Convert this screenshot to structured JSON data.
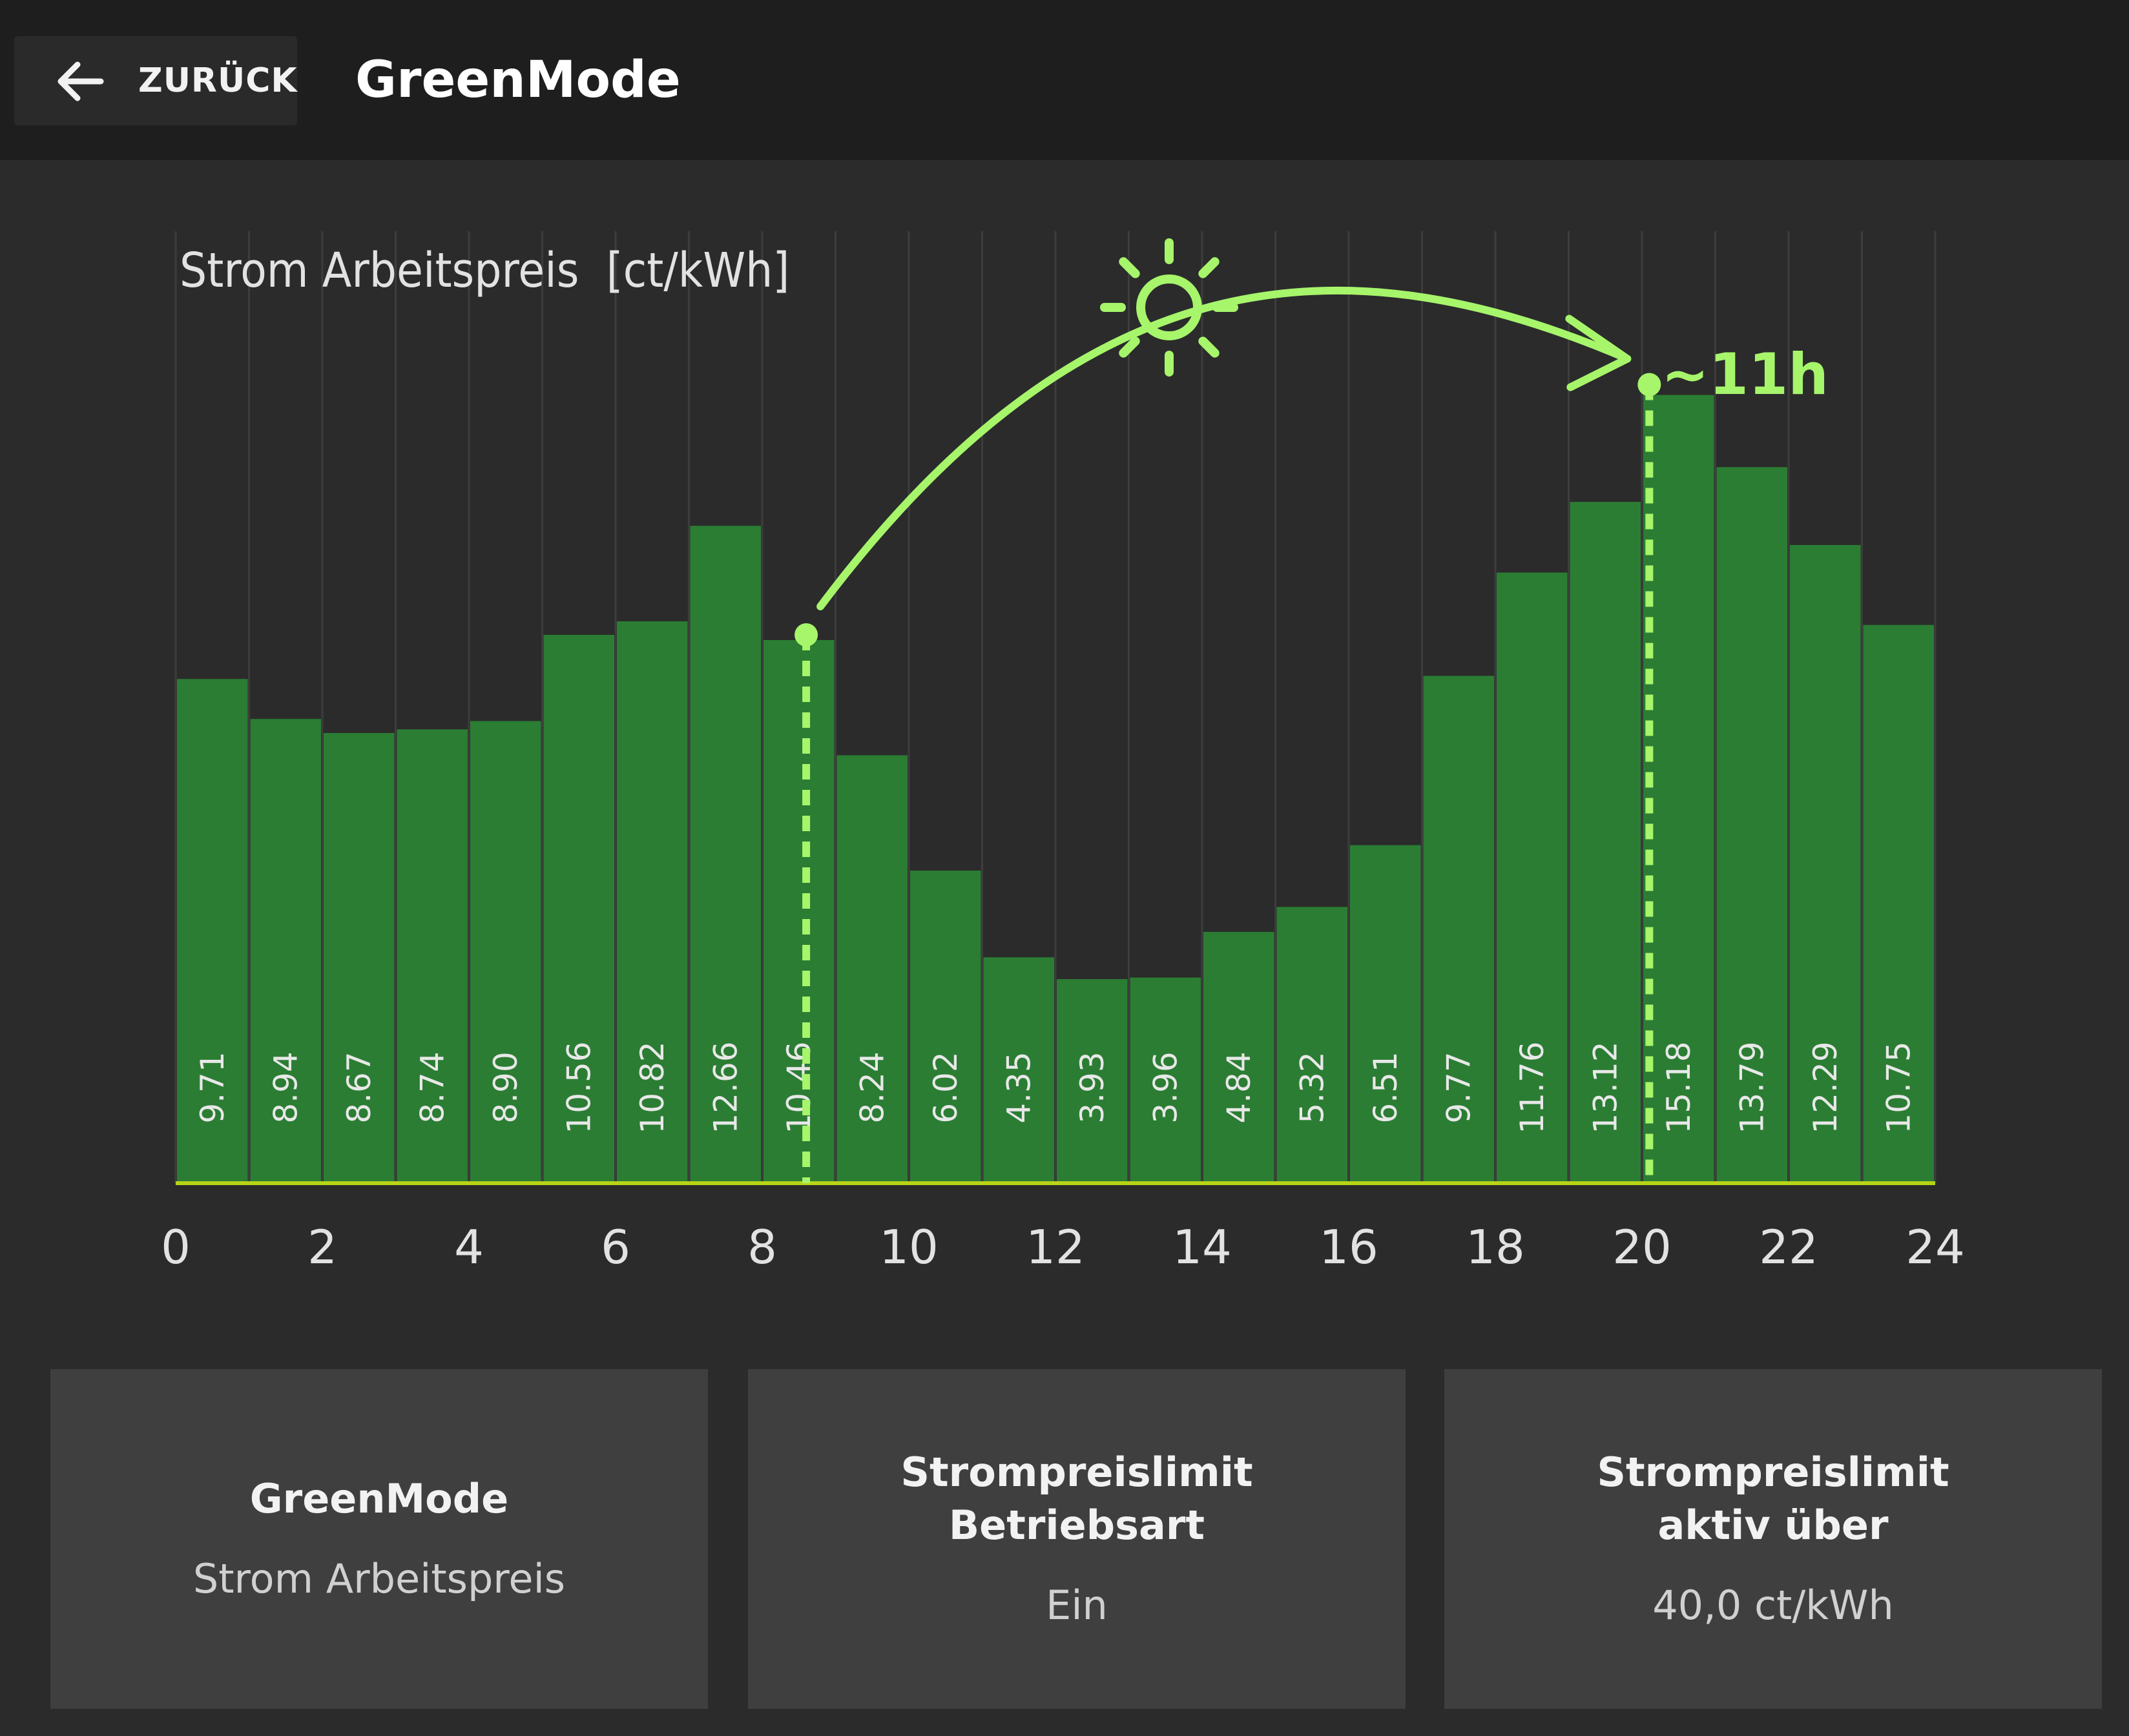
{
  "header": {
    "back_label": "ZURÜCK",
    "title": "GreenMode"
  },
  "chart_data": {
    "type": "bar",
    "title": "Strom Arbeitspreis  [ct/kWh]",
    "xlabel": "",
    "ylabel": "",
    "x_ticks": [
      0,
      2,
      4,
      6,
      8,
      10,
      12,
      14,
      16,
      18,
      20,
      22,
      24
    ],
    "xlim": [
      0,
      24
    ],
    "ylim": [
      0,
      20
    ],
    "grid": true,
    "bar_color": "#2b7d33",
    "baseline_color": "#b7d418",
    "categories": [
      0,
      1,
      2,
      3,
      4,
      5,
      6,
      7,
      8,
      9,
      10,
      11,
      12,
      13,
      14,
      15,
      16,
      17,
      18,
      19,
      20,
      21,
      22,
      23
    ],
    "values": [
      9.71,
      8.94,
      8.67,
      8.74,
      8.9,
      10.56,
      10.82,
      12.66,
      10.46,
      8.24,
      6.02,
      4.35,
      3.93,
      3.96,
      4.84,
      5.32,
      6.51,
      9.77,
      11.76,
      13.12,
      15.18,
      13.79,
      12.29,
      10.75
    ],
    "labels": [
      "9.71",
      "8.94",
      "8.67",
      "8.74",
      "8.90",
      "10.56",
      "10.82",
      "12.66",
      "10.46",
      "8.24",
      "6.02",
      "4.35",
      "3.93",
      "3.96",
      "4.84",
      "5.32",
      "6.51",
      "9.77",
      "11.76",
      "13.12",
      "15.18",
      "13.79",
      "12.29",
      "10.75"
    ],
    "annotations": {
      "shift_label": "~11h",
      "shift_from_hour": 8.6,
      "shift_to_hour": 20.1,
      "accent_color": "#a6f56b",
      "icon": "sun-icon"
    }
  },
  "cards": [
    {
      "title": "GreenMode",
      "value": "Strom Arbeitspreis"
    },
    {
      "title": "Strompreislimit\nBetriebsart",
      "value": "Ein"
    },
    {
      "title": "Strompreislimit\naktiv über",
      "value": "40,0 ct/kWh"
    }
  ]
}
